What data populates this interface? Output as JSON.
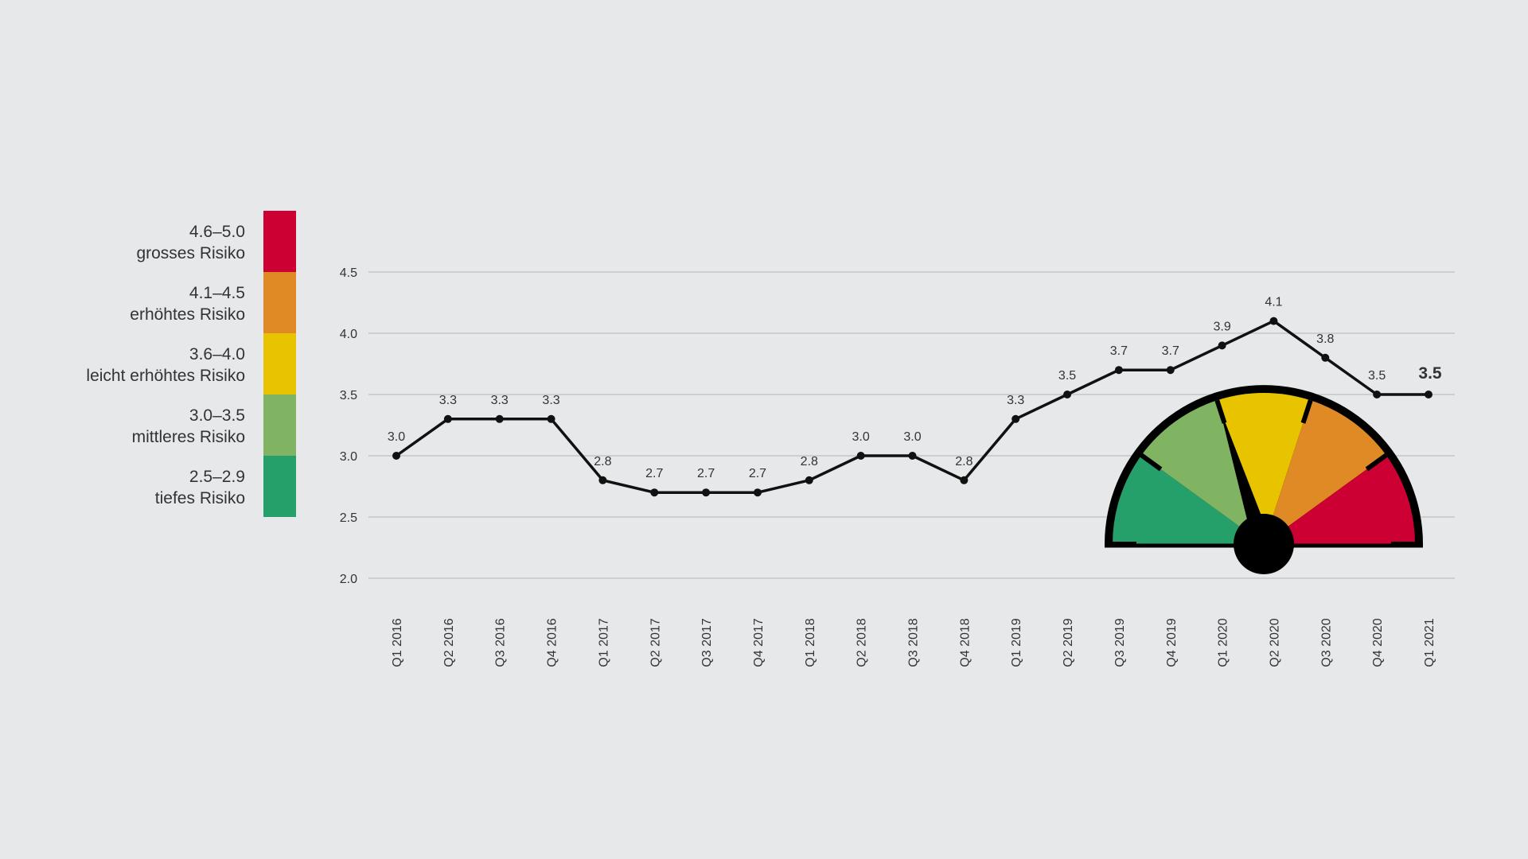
{
  "chart_data": {
    "type": "line",
    "categories": [
      "Q1 2016",
      "Q2 2016",
      "Q3 2016",
      "Q4 2016",
      "Q1 2017",
      "Q2 2017",
      "Q3 2017",
      "Q4 2017",
      "Q1 2018",
      "Q2 2018",
      "Q3 2018",
      "Q4 2018",
      "Q1 2019",
      "Q2 2019",
      "Q3 2019",
      "Q4 2019",
      "Q1 2020",
      "Q2 2020",
      "Q3 2020",
      "Q4 2020",
      "Q1 2021"
    ],
    "values": [
      3.0,
      3.3,
      3.3,
      3.3,
      2.8,
      2.7,
      2.7,
      2.7,
      2.8,
      3.0,
      3.0,
      2.8,
      3.3,
      3.5,
      3.7,
      3.7,
      3.9,
      4.1,
      3.8,
      3.5,
      3.5
    ],
    "data_labels": [
      "3.0",
      "3.3",
      "3.3",
      "3.3",
      "2.8",
      "2.7",
      "2.7",
      "2.7",
      "2.8",
      "3.0",
      "3.0",
      "2.8",
      "3.3",
      "3.5",
      "3.7",
      "3.7",
      "3.9",
      "4.1",
      "3.8",
      "3.5",
      "3.5"
    ],
    "y_ticks": [
      "2.0",
      "2.5",
      "3.0",
      "3.5",
      "4.0",
      "4.5"
    ],
    "ylim": [
      2.0,
      4.5
    ],
    "grid": true,
    "line_color": "#111111",
    "legend_position": "left",
    "risk_bands": [
      {
        "range": "4.6–5.0",
        "label": "grosses Risiko",
        "color": "#cc0033"
      },
      {
        "range": "4.1–4.5",
        "label": "erhöhtes Risiko",
        "color": "#e08a26"
      },
      {
        "range": "3.6–4.0",
        "label": "leicht erhöhtes Risiko",
        "color": "#e8c400"
      },
      {
        "range": "3.0–3.5",
        "label": "mittleres Risiko",
        "color": "#80b463"
      },
      {
        "range": "2.5–2.9",
        "label": "tiefes Risiko",
        "color": "#26a06a"
      }
    ],
    "gauge": {
      "value": 3.5,
      "min": 2.5,
      "max": 5.0,
      "segment_colors": [
        "#26a06a",
        "#80b463",
        "#e8c400",
        "#e08a26",
        "#cc0033"
      ]
    }
  }
}
